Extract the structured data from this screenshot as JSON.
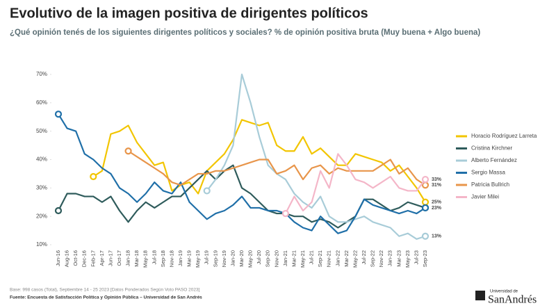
{
  "chart_data": {
    "type": "line",
    "title": "Evolutivo de la imagen positiva de dirigentes políticos",
    "subtitle": "¿Qué opinión tenés de los siguientes dirigentes políticos y sociales? % de opinión positiva bruta (Muy buena + Algo buena)",
    "categories": [
      "Jun-16",
      "Aug-16",
      "Oct-16",
      "Dec-16",
      "Feb-17",
      "Apr-17",
      "Jun-17",
      "Oct-17",
      "Jan-18",
      "Mar-18",
      "May-18",
      "Jul-18",
      "Sep-18",
      "Nov-18",
      "Jan-19",
      "Mar-19",
      "May-19",
      "Jul-19",
      "Sep-19",
      "Nov-19",
      "Jan-20",
      "Mar-20",
      "May-20",
      "Jul-20",
      "Sep-20",
      "Nov-20",
      "Jan-21",
      "Mar-21",
      "May-21",
      "Jul-21",
      "Sep-21",
      "Nov-21",
      "Jan-22",
      "Mar-22",
      "May-22",
      "Jul-22",
      "Sep-22",
      "Nov-22",
      "Jan-23",
      "Mar-23",
      "May-23",
      "Jul-23",
      "Sep-23"
    ],
    "series": [
      {
        "name": "Horacio Rodríguez Larreta",
        "color": "#f2c500",
        "values": [
          null,
          null,
          null,
          null,
          34,
          36,
          49,
          50,
          52,
          46,
          42,
          38,
          39,
          29,
          31,
          32,
          28,
          36,
          39,
          42,
          47,
          54,
          53,
          52,
          53,
          45,
          43,
          43,
          48,
          42,
          44,
          41,
          38,
          38,
          42,
          41,
          40,
          39,
          36,
          38,
          34,
          30,
          25
        ],
        "value_labels": [
          null,
          null,
          null,
          null,
          null,
          null,
          null,
          null,
          null,
          null,
          null,
          null,
          null,
          null,
          null,
          null,
          null,
          null,
          null,
          null,
          null,
          null,
          null,
          null,
          null,
          null,
          null,
          null,
          null,
          null,
          null,
          null,
          null,
          null,
          null,
          null,
          null,
          null,
          null,
          null,
          null,
          null,
          "25%"
        ]
      },
      {
        "name": "Cristina Kirchner",
        "color": "#2e5b5b",
        "values": [
          22,
          28,
          28,
          27,
          27,
          25,
          27,
          22,
          18,
          22,
          25,
          23,
          25,
          27,
          27,
          30,
          33,
          36,
          33,
          36,
          38,
          30,
          28,
          25,
          22,
          21,
          21,
          20,
          20,
          18,
          19,
          18,
          16,
          18,
          20,
          26,
          26,
          24,
          22,
          23,
          25,
          24,
          23
        ],
        "value_labels": [
          null,
          null,
          null,
          null,
          null,
          null,
          null,
          null,
          null,
          null,
          null,
          null,
          null,
          null,
          null,
          null,
          null,
          null,
          null,
          null,
          null,
          null,
          null,
          null,
          null,
          null,
          null,
          null,
          null,
          null,
          null,
          null,
          null,
          null,
          null,
          null,
          null,
          null,
          null,
          null,
          null,
          null,
          "23%"
        ]
      },
      {
        "name": "Alberto Fernández",
        "color": "#a8ccd8",
        "values": [
          null,
          null,
          null,
          null,
          null,
          null,
          null,
          null,
          null,
          null,
          null,
          null,
          null,
          null,
          null,
          null,
          null,
          29,
          33,
          38,
          45,
          70,
          60,
          48,
          38,
          35,
          33,
          28,
          25,
          23,
          27,
          20,
          18,
          18,
          19,
          20,
          18,
          17,
          16,
          13,
          14,
          12,
          13
        ],
        "value_labels": [
          null,
          null,
          null,
          null,
          null,
          null,
          null,
          null,
          null,
          null,
          null,
          null,
          null,
          null,
          null,
          null,
          null,
          null,
          null,
          null,
          null,
          null,
          null,
          null,
          null,
          null,
          null,
          null,
          null,
          null,
          null,
          null,
          null,
          null,
          null,
          null,
          null,
          null,
          null,
          null,
          null,
          null,
          "13%"
        ]
      },
      {
        "name": "Sergio Massa",
        "color": "#1f6fa8",
        "values": [
          56,
          51,
          50,
          42,
          40,
          37,
          35,
          30,
          28,
          25,
          28,
          32,
          29,
          28,
          32,
          25,
          22,
          19,
          21,
          22,
          24,
          27,
          23,
          23,
          22,
          22,
          21,
          18,
          16,
          15,
          20,
          17,
          14,
          15,
          20,
          26,
          24,
          23,
          22,
          21,
          22,
          21,
          23
        ]
      },
      {
        "name": "Patricia Bullrich",
        "color": "#e8954a",
        "values": [
          null,
          null,
          null,
          null,
          null,
          null,
          null,
          null,
          43,
          41,
          39,
          37,
          35,
          32,
          31,
          33,
          35,
          35,
          36,
          36,
          37,
          38,
          39,
          40,
          40,
          35,
          36,
          38,
          33,
          37,
          38,
          35,
          37,
          36,
          36,
          36,
          36,
          38,
          40,
          35,
          37,
          33,
          31
        ],
        "value_labels": [
          null,
          null,
          null,
          null,
          null,
          null,
          null,
          null,
          null,
          null,
          null,
          null,
          null,
          null,
          null,
          null,
          null,
          null,
          null,
          null,
          null,
          null,
          null,
          null,
          null,
          null,
          null,
          null,
          null,
          null,
          null,
          null,
          null,
          null,
          null,
          null,
          null,
          null,
          null,
          null,
          null,
          null,
          "31%"
        ]
      },
      {
        "name": "Javier Milei",
        "color": "#f4b6c8",
        "values": [
          null,
          null,
          null,
          null,
          null,
          null,
          null,
          null,
          null,
          null,
          null,
          null,
          null,
          null,
          null,
          null,
          null,
          null,
          null,
          null,
          null,
          null,
          null,
          null,
          null,
          null,
          21,
          27,
          22,
          25,
          36,
          30,
          42,
          38,
          33,
          32,
          30,
          32,
          34,
          30,
          29,
          29,
          33
        ],
        "value_labels": [
          null,
          null,
          null,
          null,
          null,
          null,
          null,
          null,
          null,
          null,
          null,
          null,
          null,
          null,
          null,
          null,
          null,
          null,
          null,
          null,
          null,
          null,
          null,
          null,
          null,
          null,
          null,
          null,
          null,
          null,
          null,
          null,
          null,
          null,
          null,
          null,
          null,
          null,
          null,
          null,
          null,
          null,
          "33%"
        ]
      }
    ],
    "ylim": [
      10,
      70
    ],
    "yticks": [
      {
        "value": 10,
        "label": "10%"
      },
      {
        "value": 20,
        "label": "20%"
      },
      {
        "value": 30,
        "label": "30%"
      },
      {
        "value": 40,
        "label": "40%"
      },
      {
        "value": 50,
        "label": "50%"
      },
      {
        "value": 60,
        "label": "60%"
      },
      {
        "value": 70,
        "label": "70%"
      }
    ],
    "legend": "right",
    "notes": [
      "Base: 998 casos (Total), Septiembre 14 - 25 2023 [Datos Ponderados Según Voto PASO 2023]",
      "Fuente: Encuesta de Satisfacción Política y Opinión Pública – Universidad de San Andrés"
    ]
  },
  "logo": {
    "line1": "Universidad de",
    "line2": "SanAndrés"
  }
}
